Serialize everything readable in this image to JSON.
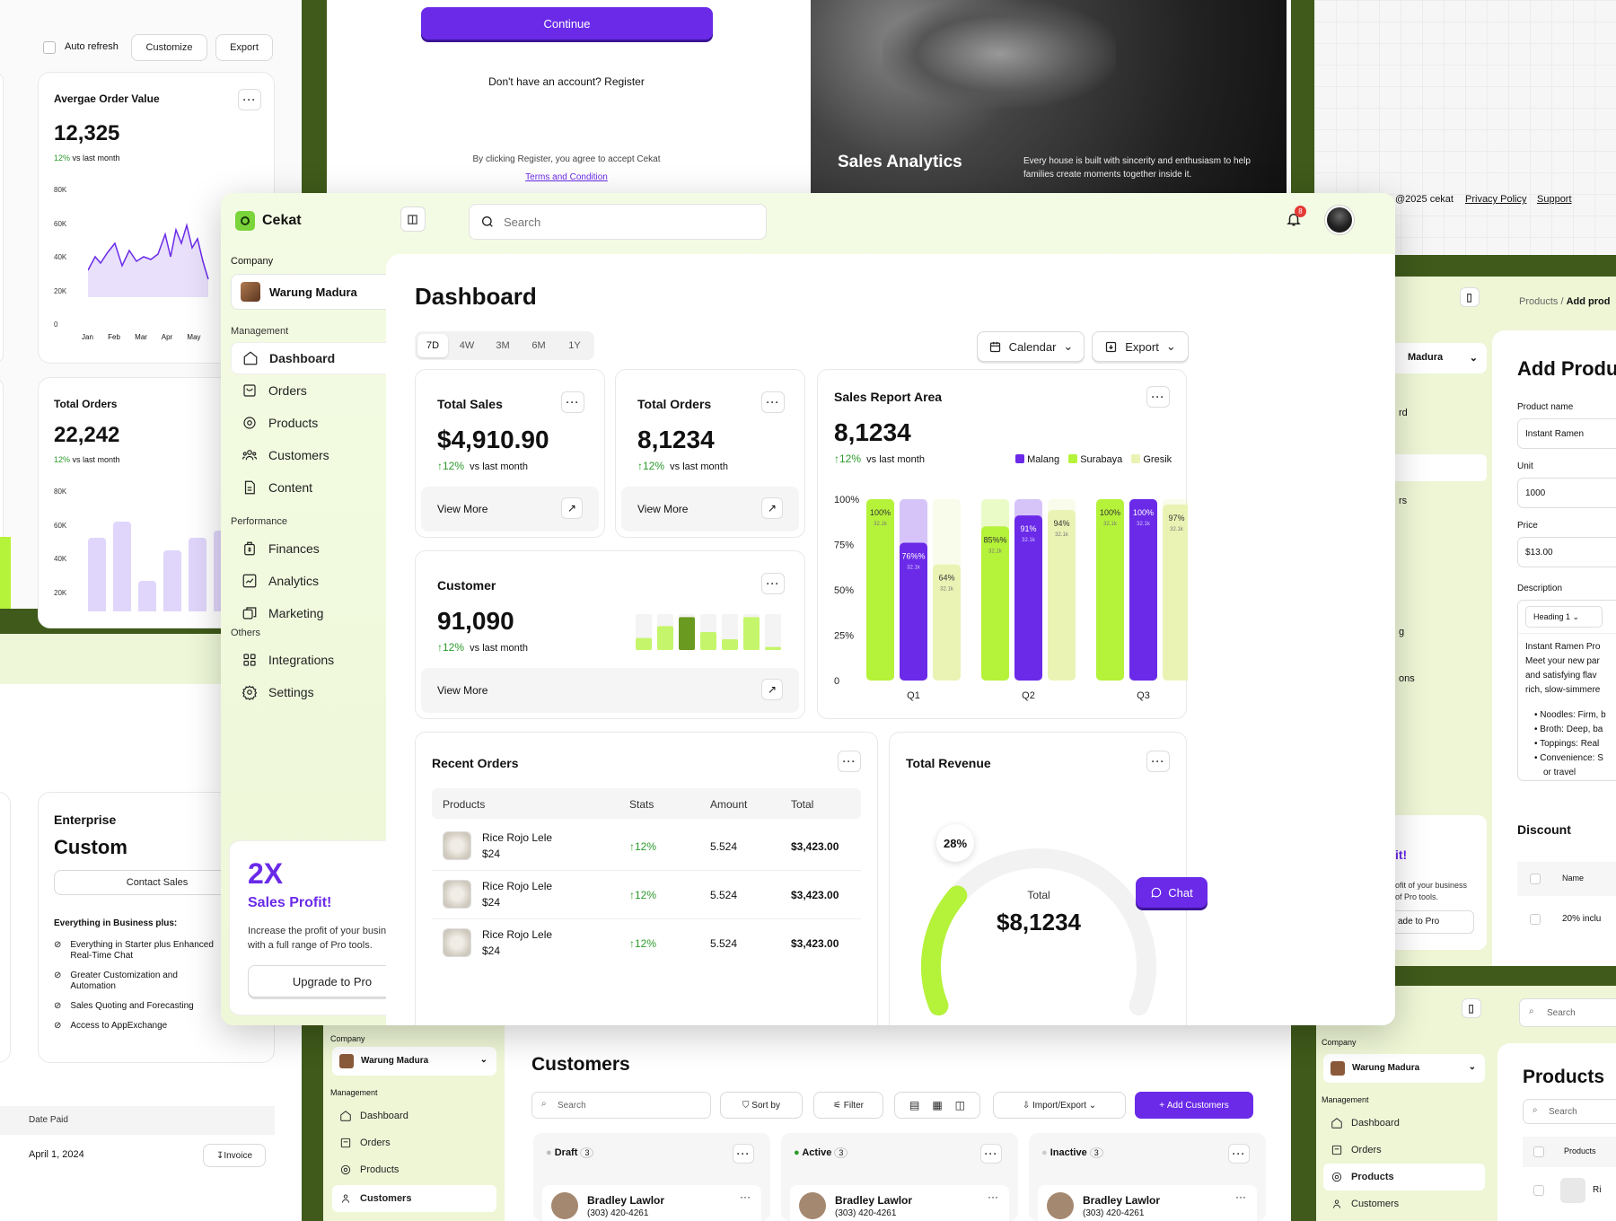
{
  "colors": {
    "accent": "#6a2ae8",
    "lime": "#b5f23a",
    "lightlime": "#e5f7b8",
    "olive": "#3f5a1a",
    "positive": "#2b9a2b"
  },
  "bg_left": {
    "toolbar": {
      "auto_refresh": "Auto refresh",
      "customize": "Customize",
      "export": "Export"
    },
    "aov": {
      "title": "Avergae Order Value",
      "value": "12,325",
      "change": "12%",
      "vs": "vs last month",
      "y_ticks": [
        "80K",
        "60K",
        "40K",
        "20K",
        "0"
      ],
      "x_ticks": [
        "Jan",
        "Feb",
        "Mar",
        "Apr",
        "May"
      ]
    },
    "orders": {
      "title": "Total Orders",
      "value": "22,242",
      "change": "12%",
      "vs": "vs last month",
      "y_ticks": [
        "80K",
        "60K",
        "40K",
        "20K"
      ]
    },
    "pricing": {
      "tier": "Enterprise",
      "name": "Custom",
      "cta": "Contact Sales",
      "features_title": "Everything in Business plus:",
      "features": [
        "Everything in Starter plus Enhanced Real-Time Chat",
        "Greater Customization and Automation",
        "Sales Quoting and Forecasting",
        "Access to AppExchange"
      ]
    },
    "payments": {
      "col": "Date Paid",
      "date": "April 1, 2024",
      "invoice": "Invoice"
    }
  },
  "bg_top": {
    "continue": "Continue",
    "register": "Don't have an account? Register",
    "terms_pre": "By clicking Register, you agree to accept Cekat",
    "terms_link": "Terms and Condition",
    "hero_title": "Sales Analytics",
    "hero_text": "Every house is built with sincerity and enthusiasm to help families create moments together inside it.",
    "footer_copy": "@2025 cekat",
    "footer_privacy": "Privacy Policy",
    "footer_support": "Support"
  },
  "bg_right": {
    "breadcrumb_root": "Products",
    "breadcrumb_sep": "/",
    "breadcrumb_current": "Add prod",
    "company": "Madura",
    "nav_fragments": [
      "rd",
      "rs",
      "g",
      "ons"
    ],
    "title": "Add Produ",
    "fields": [
      {
        "label": "Product name",
        "value": "Instant Ramen"
      },
      {
        "label": "Unit",
        "value": "1000"
      },
      {
        "label": "Price",
        "value": "$13.00"
      }
    ],
    "description_label": "Description",
    "heading_select": "Heading 1",
    "description": [
      "Instant Ramen Pro",
      "Meet your new par",
      "and satisfying flav",
      "rich, slow-simmere"
    ],
    "bullets": [
      "Noodles: Firm, b",
      "Broth: Deep, ba",
      "Toppings: Real",
      "Convenience: S",
      "or travel"
    ],
    "promo_title": "it!",
    "promo_text": [
      "ofit of your business",
      "of Pro tools."
    ],
    "promo_btn": "ade to Pro",
    "discount": "Discount",
    "discount_col": "Name",
    "discount_row": "20% inclu"
  },
  "bg_bottom": {
    "company_label": "Company",
    "company": "Warung Madura",
    "mgmt": "Management",
    "nav": [
      "Dashboard",
      "Orders",
      "Products",
      "Customers"
    ],
    "title": "Customers",
    "search": "Search",
    "sort": "Sort by",
    "filter": "Filter",
    "import": "Import/Export",
    "add": "Add Customers",
    "columns": [
      {
        "name": "Draft",
        "count": "3"
      },
      {
        "name": "Active",
        "count": "3"
      },
      {
        "name": "Inactive",
        "count": "3"
      }
    ],
    "person": "Bradley Lawlor",
    "phone": "(303) 420-4261",
    "r_company_label": "Company",
    "r_company": "Warung Madura",
    "r_mgmt": "Management",
    "r_nav": [
      "Dashboard",
      "Orders",
      "Products",
      "Customers"
    ],
    "r_title": "Products",
    "r_search": "Search",
    "r_col": "Products",
    "r_row": "Ri"
  },
  "app": {
    "brand": "Cekat",
    "search_placeholder": "Search",
    "notif_count": "8",
    "company_label": "Company",
    "company": "Warung Madura",
    "sections": {
      "management": "Management",
      "performance": "Performance",
      "others": "Others"
    },
    "nav_management": [
      {
        "label": "Dashboard",
        "icon": "home-icon"
      },
      {
        "label": "Orders",
        "icon": "orders-icon"
      },
      {
        "label": "Products",
        "icon": "products-icon"
      },
      {
        "label": "Customers",
        "icon": "customers-icon"
      },
      {
        "label": "Content",
        "icon": "content-icon"
      }
    ],
    "nav_performance": [
      {
        "label": "Finances",
        "icon": "finances-icon"
      },
      {
        "label": "Analytics",
        "icon": "analytics-icon"
      },
      {
        "label": "Marketing",
        "icon": "marketing-icon"
      }
    ],
    "nav_others": [
      {
        "label": "Integrations",
        "icon": "integrations-icon"
      },
      {
        "label": "Settings",
        "icon": "settings-icon"
      }
    ],
    "promo": {
      "big": "2X",
      "title": "Sales Profit!",
      "text": "Increase the profit of your business with a full range of Pro tools.",
      "button": "Upgrade to Pro"
    },
    "page_title": "Dashboard",
    "ranges": [
      "7D",
      "4W",
      "3M",
      "6M",
      "1Y"
    ],
    "calendar": "Calendar",
    "export": "Export",
    "total_sales": {
      "title": "Total Sales",
      "value": "$4,910.90",
      "change": "12%",
      "vs": "vs last month",
      "more": "View More"
    },
    "total_orders": {
      "title": "Total Orders",
      "value": "8,1234",
      "change": "12%",
      "vs": "vs last month",
      "more": "View More"
    },
    "customer": {
      "title": "Customer",
      "value": "91,090",
      "change": "12%",
      "vs": "vs last month",
      "more": "View More"
    },
    "recent": {
      "title": "Recent Orders",
      "headers": [
        "Products",
        "Stats",
        "Amount",
        "Total"
      ],
      "rows": [
        {
          "name": "Rice Rojo Lele",
          "price": "$24",
          "stat": "12%",
          "amount": "5.524",
          "total": "$3,423.00"
        },
        {
          "name": "Rice Rojo Lele",
          "price": "$24",
          "stat": "12%",
          "amount": "5.524",
          "total": "$3,423.00"
        },
        {
          "name": "Rice Rojo Lele",
          "price": "$24",
          "stat": "12%",
          "amount": "5.524",
          "total": "$3,423.00"
        }
      ]
    },
    "revenue": {
      "title": "Total Revenue",
      "percent": "28%",
      "label": "Total",
      "value": "$8,1234",
      "fraction": 0.28
    },
    "chat": "Chat"
  },
  "chart_data": [
    {
      "type": "bar",
      "title": "Sales Report Area",
      "value": "8,1234",
      "change": "12%",
      "vs": "vs last month",
      "categories": [
        "Q1",
        "Q2",
        "Q3"
      ],
      "y_ticks": [
        "100%",
        "75%",
        "50%",
        "25%",
        "0"
      ],
      "ylim": [
        0,
        100
      ],
      "legend": "top-right",
      "series": [
        {
          "name": "Malang",
          "color": "#6a2ae8",
          "values": [
            76,
            91,
            100
          ]
        },
        {
          "name": "Surabaya",
          "color": "#b5f23a",
          "values": [
            100,
            85,
            100
          ]
        },
        {
          "name": "Gresik",
          "color": "#eaf3b4",
          "values": [
            64,
            94,
            97
          ]
        }
      ],
      "bar_labels": [
        {
          "series": "Surabaya",
          "cat": "Q1",
          "pct": "100%",
          "sub": "32.1k"
        },
        {
          "series": "Malang",
          "cat": "Q1",
          "pct": "76%%",
          "sub": "32.1k"
        },
        {
          "series": "Gresik",
          "cat": "Q1",
          "pct": "64%",
          "sub": "32.1k"
        },
        {
          "series": "Surabaya",
          "cat": "Q2",
          "pct": "85%%",
          "sub": "32.1k"
        },
        {
          "series": "Malang",
          "cat": "Q2",
          "pct": "91%",
          "sub": "32.1k"
        },
        {
          "series": "Gresik",
          "cat": "Q2",
          "pct": "94%",
          "sub": "32.1k"
        },
        {
          "series": "Surabaya",
          "cat": "Q3",
          "pct": "100%",
          "sub": "32.1k"
        },
        {
          "series": "Malang",
          "cat": "Q3",
          "pct": "100%",
          "sub": "32.1k"
        },
        {
          "series": "Gresik",
          "cat": "Q3",
          "pct": "97%",
          "sub": "32.1k"
        }
      ]
    },
    {
      "type": "bar",
      "title": "Customer",
      "values": [
        20,
        40,
        55,
        30,
        18,
        55,
        5
      ]
    }
  ]
}
